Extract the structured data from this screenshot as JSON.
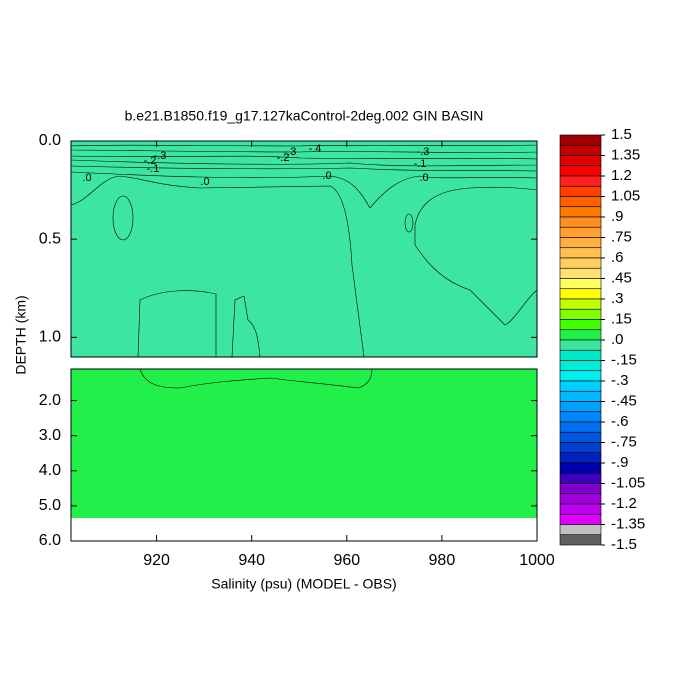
{
  "chart_data": {
    "type": "contour",
    "title": "b.e21.B1850.f19_g17.127kaControl-2deg.002 GIN BASIN",
    "x_label": "Salinity (psu) (MODEL - OBS)",
    "y_label": "DEPTH (km)",
    "xlim": [
      902,
      1000
    ],
    "xticks": [
      920,
      940,
      960,
      980,
      1000
    ],
    "y_inverted": true,
    "panels": [
      {
        "ylim": [
          0,
          1.1
        ],
        "yticks": [
          {
            "value": 0,
            "label": "0.0"
          },
          {
            "value": 0.5,
            "label": "0.5"
          },
          {
            "value": 1,
            "label": "1.0"
          }
        ]
      },
      {
        "ylim": [
          1.1,
          6
        ],
        "yticks": [
          {
            "value": 2,
            "label": "2.0"
          },
          {
            "value": 3,
            "label": "3.0"
          },
          {
            "value": 4,
            "label": "4.0"
          },
          {
            "value": 5,
            "label": "5.0"
          },
          {
            "value": 6,
            "label": "6.0"
          }
        ]
      }
    ],
    "contour_labels": [
      ".0",
      ".0",
      ".0",
      ".0",
      "-.3",
      "-.2",
      "-.1",
      "-.3",
      "-.2",
      "-.4",
      "-.3",
      "-.1"
    ],
    "colorbar": {
      "clim": [
        -1.5,
        1.5
      ],
      "ticks": [
        1.5,
        1.35,
        1.2,
        1.05,
        {
          "value": 0.9,
          "label": ".9"
        },
        {
          "value": 0.75,
          "label": ".75"
        },
        {
          "value": 0.6,
          "label": ".6"
        },
        {
          "value": 0.45,
          "label": ".45"
        },
        {
          "value": 0.3,
          "label": ".3"
        },
        {
          "value": 0.15,
          "label": ".15"
        },
        {
          "value": 0,
          "label": ".0"
        },
        {
          "value": -0.15,
          "label": "-.15"
        },
        {
          "value": -0.3,
          "label": "-.3"
        },
        {
          "value": -0.45,
          "label": "-.45"
        },
        {
          "value": -0.6,
          "label": "-.6"
        },
        {
          "value": -0.75,
          "label": "-.75"
        },
        {
          "value": -0.9,
          "label": "-.9"
        },
        {
          "value": -1.05,
          "label": "-1.05"
        },
        {
          "value": -1.2,
          "label": "-1.2"
        },
        {
          "value": -1.35,
          "label": "-1.35"
        },
        -1.5
      ],
      "colors": [
        "#a00000",
        "#c00000",
        "#e00000",
        "#ff0000",
        "#ff2020",
        "#ff4000",
        "#ff6000",
        "#ff7a00",
        "#ff9020",
        "#ffa030",
        "#ffb040",
        "#ffc050",
        "#ffd060",
        "#ffe070",
        "#ffff60",
        "#ffff00",
        "#c0ff00",
        "#80ff00",
        "#40ff00",
        "#22f04a",
        "#3ce6a0",
        "#00e8c8",
        "#00ecd8",
        "#00f0f0",
        "#00d0ff",
        "#00b8ff",
        "#00a0ff",
        "#0088ff",
        "#0070f0",
        "#0058e0",
        "#0040d0",
        "#0020c0",
        "#0000b0",
        "#4000c0",
        "#8000d0",
        "#a000e0",
        "#c000f0",
        "#e000ff",
        "#c0c0c0",
        "#606060"
      ]
    }
  }
}
